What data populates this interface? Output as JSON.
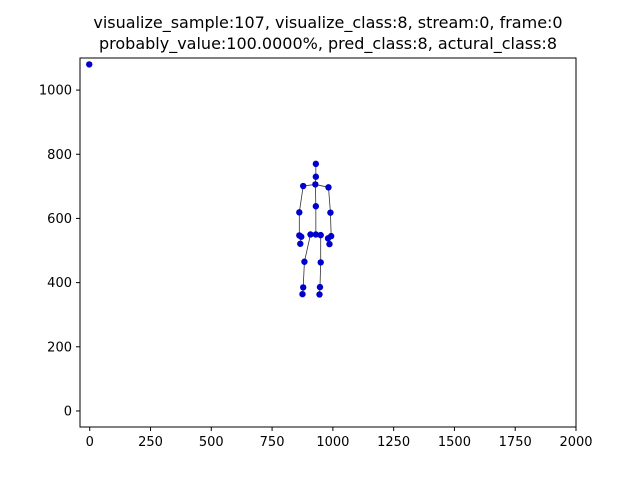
{
  "chart_data": {
    "type": "scatter",
    "title_line1": "visualize_sample:107, visualize_class:8, stream:0, frame:0",
    "title_line2": "probably_value:100.0000%, pred_class:8, actural_class:8",
    "xlim": [
      -40,
      2000
    ],
    "ylim": [
      -50,
      1100
    ],
    "x_ticks": [
      0,
      250,
      500,
      750,
      1000,
      1250,
      1500,
      1750,
      2000
    ],
    "x_tick_labels": [
      "0",
      "250",
      "500",
      "750",
      "1000",
      "1250",
      "1500",
      "1750",
      "2000"
    ],
    "y_ticks": [
      0,
      200,
      400,
      600,
      800,
      1000
    ],
    "y_tick_labels": [
      "0",
      "200",
      "400",
      "600",
      "800",
      "1000"
    ],
    "joints": [
      {
        "x": 930,
        "y": 770
      },
      {
        "x": 930,
        "y": 730
      },
      {
        "x": 928,
        "y": 706
      },
      {
        "x": 878,
        "y": 701
      },
      {
        "x": 982,
        "y": 697
      },
      {
        "x": 930,
        "y": 638
      },
      {
        "x": 862,
        "y": 619
      },
      {
        "x": 990,
        "y": 618
      },
      {
        "x": 862,
        "y": 547
      },
      {
        "x": 870,
        "y": 543
      },
      {
        "x": 866,
        "y": 521
      },
      {
        "x": 993,
        "y": 545
      },
      {
        "x": 980,
        "y": 538
      },
      {
        "x": 986,
        "y": 520
      },
      {
        "x": 908,
        "y": 550
      },
      {
        "x": 930,
        "y": 550
      },
      {
        "x": 950,
        "y": 548
      },
      {
        "x": 883,
        "y": 465
      },
      {
        "x": 950,
        "y": 463
      },
      {
        "x": 878,
        "y": 385
      },
      {
        "x": 875,
        "y": 364
      },
      {
        "x": 947,
        "y": 386
      },
      {
        "x": 945,
        "y": 363
      },
      {
        "x": -2,
        "y": 1080
      }
    ],
    "bones": [
      [
        0,
        1
      ],
      [
        1,
        2
      ],
      [
        2,
        3
      ],
      [
        2,
        4
      ],
      [
        2,
        5
      ],
      [
        3,
        6
      ],
      [
        6,
        8
      ],
      [
        8,
        9
      ],
      [
        9,
        10
      ],
      [
        4,
        7
      ],
      [
        7,
        11
      ],
      [
        11,
        12
      ],
      [
        12,
        13
      ],
      [
        5,
        15
      ],
      [
        15,
        14
      ],
      [
        15,
        16
      ],
      [
        14,
        17
      ],
      [
        17,
        19
      ],
      [
        19,
        20
      ],
      [
        16,
        18
      ],
      [
        18,
        21
      ],
      [
        21,
        22
      ]
    ],
    "point_color": "#0000cc",
    "bone_color": "#333333"
  }
}
